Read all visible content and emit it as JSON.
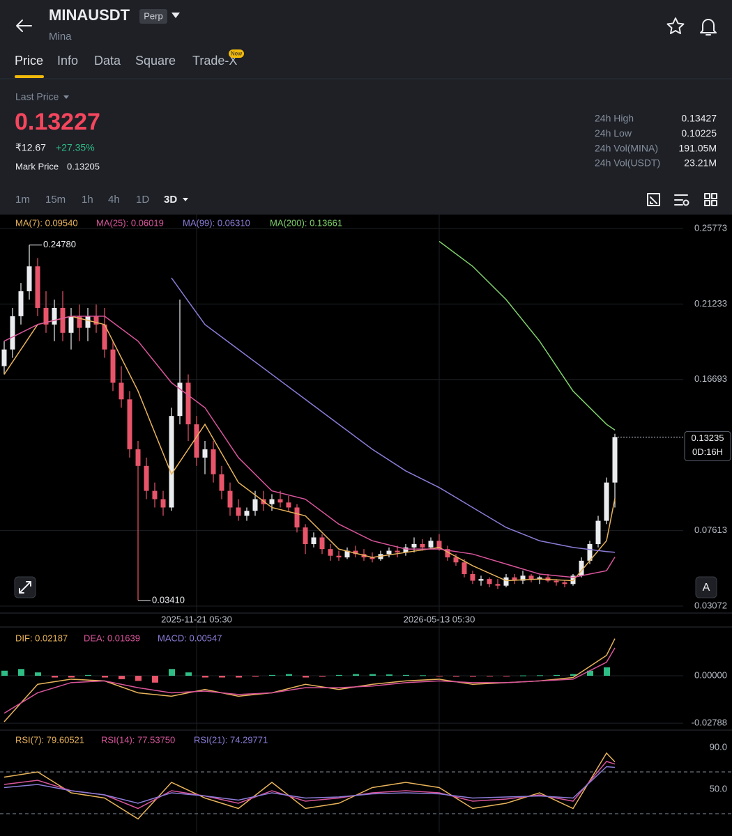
{
  "header": {
    "symbol": "MINAUSDT",
    "badge": "Perp",
    "name": "Mina"
  },
  "tabs": [
    "Price",
    "Info",
    "Data",
    "Square",
    "Trade-X"
  ],
  "tab_badge": "New",
  "price": {
    "label": "Last Price",
    "last": "0.13227",
    "fiat": "₹12.67",
    "change": "+27.35%",
    "mark_label": "Mark Price",
    "mark": "0.13205"
  },
  "stats": [
    [
      "24h High",
      "0.13427"
    ],
    [
      "24h Low",
      "0.10225"
    ],
    [
      "24h Vol(MINA)",
      "191.05M"
    ],
    [
      "24h Vol(USDT)",
      "23.21M"
    ]
  ],
  "intervals": [
    "1m",
    "15m",
    "1h",
    "4h",
    "1D",
    "3D"
  ],
  "chart_data": [
    {
      "type": "candlestick",
      "up_color": "#eaecef",
      "down_color": "#e8556a",
      "ylim": [
        0.03072,
        0.25773
      ],
      "yticks": [
        0.25773,
        0.21233,
        0.16693,
        0.07613,
        0.03072
      ],
      "xticks": [
        {
          "value": 23,
          "label": "2025-11-21 05:30"
        },
        {
          "value": 52,
          "label": "2026-05-13 05:30"
        }
      ],
      "candles": [
        [
          0.175,
          0.19,
          0.17,
          0.185
        ],
        [
          0.185,
          0.21,
          0.18,
          0.205
        ],
        [
          0.205,
          0.225,
          0.2,
          0.22
        ],
        [
          0.22,
          0.2478,
          0.215,
          0.235
        ],
        [
          0.235,
          0.24,
          0.205,
          0.21
        ],
        [
          0.21,
          0.22,
          0.195,
          0.2
        ],
        [
          0.2,
          0.215,
          0.19,
          0.21
        ],
        [
          0.21,
          0.22,
          0.19,
          0.195
        ],
        [
          0.195,
          0.21,
          0.185,
          0.205
        ],
        [
          0.205,
          0.212,
          0.19,
          0.198
        ],
        [
          0.198,
          0.21,
          0.19,
          0.205
        ],
        [
          0.205,
          0.212,
          0.195,
          0.2
        ],
        [
          0.2,
          0.21,
          0.18,
          0.185
        ],
        [
          0.185,
          0.19,
          0.16,
          0.165
        ],
        [
          0.165,
          0.175,
          0.15,
          0.155
        ],
        [
          0.155,
          0.16,
          0.12,
          0.125
        ],
        [
          0.125,
          0.13,
          0.0341,
          0.115
        ],
        [
          0.115,
          0.12,
          0.095,
          0.1
        ],
        [
          0.1,
          0.105,
          0.09,
          0.095
        ],
        [
          0.095,
          0.1,
          0.085,
          0.09
        ],
        [
          0.09,
          0.15,
          0.088,
          0.145
        ],
        [
          0.145,
          0.215,
          0.14,
          0.165
        ],
        [
          0.165,
          0.17,
          0.13,
          0.14
        ],
        [
          0.14,
          0.145,
          0.115,
          0.12
        ],
        [
          0.12,
          0.13,
          0.11,
          0.125
        ],
        [
          0.125,
          0.13,
          0.105,
          0.11
        ],
        [
          0.11,
          0.115,
          0.095,
          0.1
        ],
        [
          0.1,
          0.105,
          0.085,
          0.09
        ],
        [
          0.09,
          0.095,
          0.082,
          0.085
        ],
        [
          0.085,
          0.09,
          0.082,
          0.088
        ],
        [
          0.088,
          0.1,
          0.085,
          0.095
        ],
        [
          0.095,
          0.1,
          0.088,
          0.092
        ],
        [
          0.092,
          0.098,
          0.088,
          0.095
        ],
        [
          0.095,
          0.1,
          0.09,
          0.093
        ],
        [
          0.093,
          0.097,
          0.088,
          0.09
        ],
        [
          0.09,
          0.092,
          0.075,
          0.078
        ],
        [
          0.078,
          0.08,
          0.062,
          0.068
        ],
        [
          0.068,
          0.075,
          0.066,
          0.072
        ],
        [
          0.072,
          0.074,
          0.062,
          0.065
        ],
        [
          0.065,
          0.068,
          0.058,
          0.061
        ],
        [
          0.061,
          0.064,
          0.058,
          0.06
        ],
        [
          0.06,
          0.066,
          0.059,
          0.064
        ],
        [
          0.064,
          0.067,
          0.06,
          0.062
        ],
        [
          0.062,
          0.065,
          0.058,
          0.06
        ],
        [
          0.06,
          0.063,
          0.057,
          0.059
        ],
        [
          0.059,
          0.064,
          0.058,
          0.062
        ],
        [
          0.062,
          0.066,
          0.06,
          0.064
        ],
        [
          0.064,
          0.067,
          0.06,
          0.063
        ],
        [
          0.063,
          0.068,
          0.061,
          0.066
        ],
        [
          0.066,
          0.072,
          0.063,
          0.068
        ],
        [
          0.068,
          0.071,
          0.064,
          0.066
        ],
        [
          0.066,
          0.072,
          0.065,
          0.07
        ],
        [
          0.07,
          0.074,
          0.064,
          0.065
        ],
        [
          0.065,
          0.067,
          0.058,
          0.06
        ],
        [
          0.06,
          0.062,
          0.055,
          0.057
        ],
        [
          0.057,
          0.059,
          0.048,
          0.05
        ],
        [
          0.05,
          0.052,
          0.044,
          0.046
        ],
        [
          0.046,
          0.049,
          0.043,
          0.047
        ],
        [
          0.047,
          0.048,
          0.042,
          0.044
        ],
        [
          0.044,
          0.047,
          0.041,
          0.043
        ],
        [
          0.043,
          0.05,
          0.042,
          0.048
        ],
        [
          0.048,
          0.05,
          0.044,
          0.046
        ],
        [
          0.046,
          0.052,
          0.044,
          0.049
        ],
        [
          0.049,
          0.05,
          0.045,
          0.047
        ],
        [
          0.047,
          0.049,
          0.044,
          0.048
        ],
        [
          0.048,
          0.05,
          0.045,
          0.046
        ],
        [
          0.046,
          0.047,
          0.043,
          0.045
        ],
        [
          0.045,
          0.046,
          0.042,
          0.044
        ],
        [
          0.044,
          0.05,
          0.043,
          0.049
        ],
        [
          0.049,
          0.06,
          0.048,
          0.058
        ],
        [
          0.058,
          0.07,
          0.056,
          0.068
        ],
        [
          0.068,
          0.085,
          0.066,
          0.082
        ],
        [
          0.082,
          0.108,
          0.08,
          0.105
        ],
        [
          0.105,
          0.1343,
          0.09,
          0.13235
        ]
      ],
      "x": [
        0,
        4,
        8,
        12,
        16,
        20,
        24,
        28,
        32,
        36,
        40,
        44,
        48,
        52,
        56,
        60,
        64,
        68,
        72,
        73
      ],
      "series": [
        {
          "label": "MA(7): 0.09540",
          "color": "#e8b35a",
          "values": [
            0.17,
            0.2,
            0.205,
            0.2,
            0.16,
            0.11,
            0.14,
            0.105,
            0.09,
            0.085,
            0.065,
            0.06,
            0.063,
            0.066,
            0.055,
            0.046,
            0.047,
            0.046,
            0.07,
            0.0954
          ]
        },
        {
          "label": "MA(25): 0.06019",
          "color": "#d9559b",
          "values": [
            0.19,
            0.2,
            0.205,
            0.205,
            0.19,
            0.165,
            0.15,
            0.12,
            0.1,
            0.095,
            0.08,
            0.07,
            0.065,
            0.065,
            0.062,
            0.056,
            0.05,
            0.048,
            0.052,
            0.06019
          ]
        },
        {
          "label": "MA(99): 0.06310",
          "color": "#8c7cd8",
          "values": [
            null,
            null,
            null,
            null,
            null,
            0.228,
            0.2,
            0.185,
            0.17,
            0.155,
            0.14,
            0.125,
            0.112,
            0.102,
            0.09,
            0.078,
            0.07,
            0.066,
            0.0635,
            0.0631
          ]
        },
        {
          "label": "MA(200): 0.13661",
          "color": "#7fd26a",
          "values": [
            null,
            null,
            null,
            null,
            null,
            null,
            null,
            null,
            null,
            null,
            null,
            null,
            null,
            0.25,
            0.235,
            0.215,
            0.19,
            0.16,
            0.14,
            0.1366
          ]
        }
      ],
      "annotations": [
        {
          "index": 3,
          "value": 0.2478,
          "label": "0.24780"
        },
        {
          "index": 16,
          "value": 0.0341,
          "label": "0.03410"
        }
      ],
      "last_price": {
        "value": 0.13235,
        "label": "0.13235",
        "countdown": "0D:16H"
      }
    },
    {
      "type": "macd",
      "ylim": [
        -0.0307,
        0.02665
      ],
      "yticks": [
        {
          "value": 0,
          "label": "0.00000"
        },
        {
          "value": -0.02788,
          "label": "-0.02788"
        }
      ],
      "x": [
        0,
        4,
        8,
        12,
        16,
        20,
        24,
        28,
        32,
        36,
        40,
        44,
        48,
        52,
        56,
        60,
        64,
        68,
        72,
        73
      ],
      "series": [
        {
          "label": "DIF: 0.02187",
          "color": "#e8b35a",
          "values": [
            -0.027,
            -0.005,
            -0.002,
            -0.003,
            -0.01,
            -0.012,
            -0.008,
            -0.012,
            -0.01,
            -0.005,
            -0.008,
            -0.005,
            -0.003,
            -0.002,
            -0.005,
            -0.004,
            -0.003,
            -0.001,
            0.012,
            0.02187
          ]
        },
        {
          "label": "DEA: 0.01639",
          "color": "#d9559b",
          "values": [
            -0.022,
            -0.01,
            -0.004,
            -0.003,
            -0.007,
            -0.01,
            -0.009,
            -0.011,
            -0.01,
            -0.007,
            -0.007,
            -0.006,
            -0.004,
            -0.003,
            -0.004,
            -0.004,
            -0.003,
            -0.002,
            0.008,
            0.01639
          ]
        }
      ],
      "histogram": {
        "label": "MACD: 0.00547",
        "color": "#8c7cd8",
        "up_color": "#2ebd85",
        "down_color": "#e8556a",
        "x": [
          0,
          2,
          4,
          6,
          8,
          10,
          12,
          14,
          16,
          18,
          20,
          22,
          24,
          26,
          28,
          30,
          32,
          34,
          36,
          38,
          40,
          42,
          44,
          46,
          48,
          50,
          52,
          54,
          56,
          58,
          60,
          62,
          64,
          66,
          68,
          70,
          72
        ],
        "values": [
          0.003,
          0.004,
          0.002,
          -0.001,
          -0.001,
          0.0005,
          -0.001,
          -0.002,
          -0.003,
          -0.004,
          0.004,
          0.002,
          -0.001,
          -0.001,
          -0.001,
          -0.0005,
          0.0005,
          0.001,
          -0.001,
          -0.0005,
          0.0005,
          0.001,
          0.001,
          0.0008,
          0.0005,
          0.0003,
          -0.0003,
          -0.0005,
          -0.0005,
          -0.0003,
          -0.0003,
          0.0002,
          0.0003,
          0.0005,
          0.001,
          0.003,
          0.005
        ]
      }
    },
    {
      "type": "rsi",
      "ylim": [
        12,
        105.33
      ],
      "yticks": [
        {
          "value": 90,
          "label": "90.0"
        },
        {
          "value": 50,
          "label": "50.0"
        }
      ],
      "bands": [
        70,
        30
      ],
      "x": [
        0,
        4,
        8,
        12,
        16,
        20,
        24,
        28,
        32,
        36,
        40,
        44,
        48,
        52,
        56,
        60,
        64,
        68,
        72,
        73
      ],
      "series": [
        {
          "label": "RSI(7): 79.60521",
          "color": "#e8b35a",
          "values": [
            65,
            70,
            50,
            45,
            25,
            60,
            45,
            35,
            60,
            35,
            40,
            55,
            60,
            55,
            35,
            40,
            50,
            35,
            88,
            79.60521
          ]
        },
        {
          "label": "RSI(14): 77.53750",
          "color": "#d9559b",
          "values": [
            58,
            62,
            52,
            48,
            35,
            52,
            47,
            40,
            52,
            42,
            45,
            50,
            52,
            50,
            42,
            44,
            48,
            42,
            80,
            77.5375
          ]
        },
        {
          "label": "RSI(21): 74.29771",
          "color": "#8c7cd8",
          "values": [
            55,
            58,
            52,
            48,
            40,
            50,
            47,
            43,
            50,
            45,
            46,
            49,
            50,
            49,
            45,
            46,
            47,
            45,
            75,
            74.29771
          ]
        }
      ]
    }
  ]
}
